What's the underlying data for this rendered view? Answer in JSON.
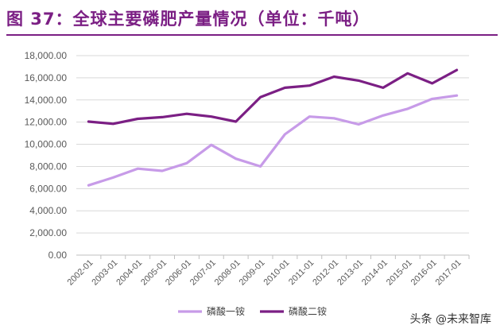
{
  "header": {
    "title": "图 37：全球主要磷肥产量情况（单位：千吨）"
  },
  "watermark": "头条 @未来智库",
  "colors": {
    "title": "#7b1f84",
    "series_1": "#c79be8",
    "series_2": "#7b1f84",
    "grid": "#d9d9d9"
  },
  "chart_data": {
    "type": "line",
    "title": "",
    "xlabel": "",
    "ylabel": "",
    "x": [
      "2002-01",
      "2003-01",
      "2004-01",
      "2005-01",
      "2006-01",
      "2007-01",
      "2008-01",
      "2009-01",
      "2010-01",
      "2011-01",
      "2012-01",
      "2013-01",
      "2014-01",
      "2015-01",
      "2016-01",
      "2017-01"
    ],
    "y_ticks": [
      "0.00",
      "2,000.00",
      "4,000.00",
      "6,000.00",
      "8,000.00",
      "10,000.00",
      "12,000.00",
      "14,000.00",
      "16,000.00",
      "18,000.00"
    ],
    "ylim": [
      0,
      18000
    ],
    "grid": true,
    "legend_position": "bottom",
    "series": [
      {
        "name": "磷酸一铵",
        "color": "#c79be8",
        "values": [
          6300,
          7000,
          7800,
          7600,
          8300,
          9950,
          8700,
          8000,
          10900,
          12500,
          12350,
          11800,
          12600,
          13200,
          14100,
          14400
        ]
      },
      {
        "name": "磷酸二铵",
        "color": "#7b1f84",
        "values": [
          12050,
          11850,
          12300,
          12450,
          12750,
          12500,
          12050,
          14250,
          15100,
          15300,
          16100,
          15750,
          15100,
          16400,
          15500,
          16700
        ]
      }
    ]
  }
}
